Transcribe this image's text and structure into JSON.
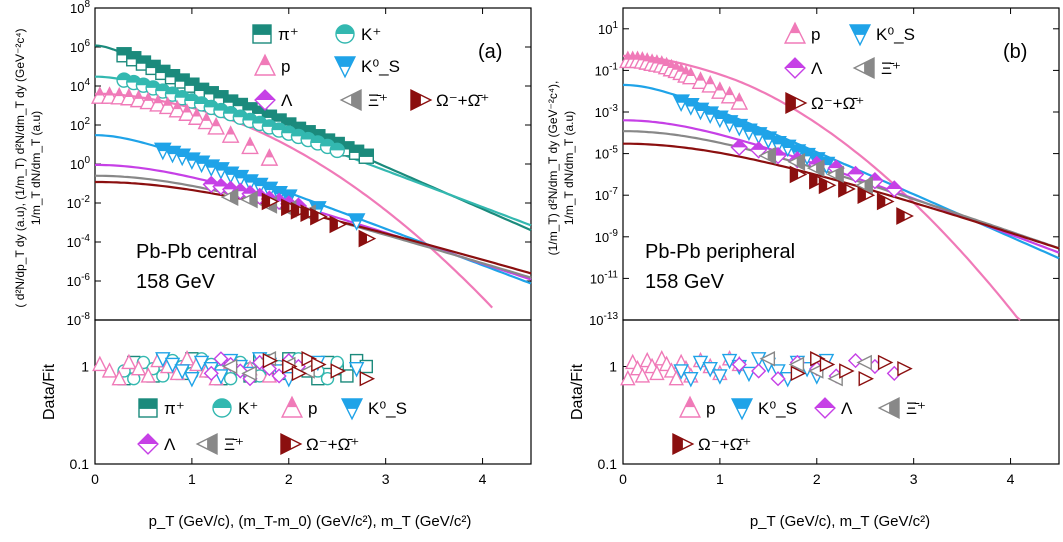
{
  "colors": {
    "pi": "#1b8a7c",
    "K": "#33b8b0",
    "p": "#f07ab8",
    "K0S": "#1fa3e8",
    "Lambda": "#c640e6",
    "Xi": "#888888",
    "Omega": "#8b0f0f",
    "axis": "#000000"
  },
  "panel_a": {
    "tag": "(a)",
    "system": "Pb-Pb central",
    "energy": "158 GeV",
    "ylabel_line1": "( d²N/dp_T dy (a.u), (1/m_T) d²N/dm_T dy (GeV⁻²c⁴)",
    "ylabel_line2": "1/m_T dN/dm_T (a.u)",
    "xlabel": "p_T (GeV/c), (m_T-m_0) (GeV/c²), m_T (GeV/c²)",
    "ratio_ylabel": "Data/Fit",
    "top_ticks": [
      "10^8",
      "10^6",
      "10^4",
      "10^2",
      "10^0",
      "10^-2",
      "10^-4",
      "10^-6",
      "10^-8"
    ],
    "ratio_ticks": [
      "1",
      "0.1"
    ],
    "x_ticks": [
      "0",
      "1",
      "2",
      "3",
      "4"
    ],
    "legend": [
      "π⁺",
      "K⁺",
      "p",
      "K⁰_S",
      "Λ",
      "Ξ̄⁺",
      "Ω⁻+Ω̄⁺"
    ]
  },
  "panel_b": {
    "tag": "(b)",
    "system": "Pb-Pb peripheral",
    "energy": "158 GeV",
    "ylabel_line1": "(1/m_T) d²N/dm_T dy (GeV⁻²c⁴),",
    "ylabel_line2": "1/m_T dN/dm_T (a.u)",
    "xlabel": "p_T (GeV/c), m_T (GeV/c²)",
    "ratio_ylabel": "Data/Fit",
    "top_ticks": [
      "10^1",
      "10^-1",
      "10^-3",
      "10^-5",
      "10^-7",
      "10^-9",
      "10^-11",
      "10^-13"
    ],
    "ratio_ticks": [
      "1",
      "0.1"
    ],
    "x_ticks": [
      "0",
      "1",
      "2",
      "3",
      "4"
    ],
    "legend": [
      "p",
      "K⁰_S",
      "Λ",
      "Ξ̄⁺",
      "Ω⁻+Ω̄⁺"
    ]
  },
  "chart_data": [
    {
      "type": "scatter",
      "panel": "a",
      "yscale": "log",
      "xlim": [
        0,
        4.5
      ],
      "ylim": [
        1e-08,
        100000000.0
      ],
      "series": [
        {
          "name": "π⁺",
          "fit": {
            "A": 1200000.0,
            "T": 0.2,
            "m": 0.14,
            "xmax": 4.5
          },
          "x": [
            0.3,
            0.4,
            0.5,
            0.6,
            0.7,
            0.8,
            0.9,
            1.0,
            1.1,
            1.2,
            1.3,
            1.4,
            1.5,
            1.6,
            1.7,
            1.8,
            1.9,
            2.0,
            2.1,
            2.2,
            2.3,
            2.4,
            2.5,
            2.6,
            2.7,
            2.8
          ],
          "y": [
            400000.0,
            250000.0,
            150000.0,
            90000.0,
            50000.0,
            30000.0,
            18000.0,
            11000.0,
            6000.0,
            4000.0,
            2500.0,
            1500.0,
            1000.0,
            600.0,
            400.0,
            250.0,
            160.0,
            100.0,
            60,
            40,
            25,
            15,
            10,
            6,
            4,
            2.5
          ]
        },
        {
          "name": "K⁺",
          "fit": {
            "A": 30000.0,
            "T": 0.23,
            "m": 0.49,
            "xmax": 4.5
          },
          "x": [
            0.3,
            0.4,
            0.5,
            0.6,
            0.7,
            0.8,
            0.9,
            1.0,
            1.1,
            1.2,
            1.3,
            1.4,
            1.5,
            1.6,
            1.7,
            1.8,
            1.9,
            2.0,
            2.1,
            2.2,
            2.3,
            2.4,
            2.5
          ],
          "y": [
            20000.0,
            15000.0,
            11000.0,
            8000.0,
            5500.0,
            3800.0,
            2500.0,
            1700.0,
            1200.0,
            800.0,
            550.0,
            380.0,
            250.0,
            170.0,
            120.0,
            80,
            55,
            38,
            26,
            18,
            12,
            8,
            5
          ]
        },
        {
          "name": "p",
          "fit": {
            "A": 4000.0,
            "T": 0.26,
            "m": 0.94,
            "xmax": 4.1,
            "steep": 2.2
          },
          "x": [
            0.05,
            0.15,
            0.25,
            0.35,
            0.45,
            0.55,
            0.65,
            0.75,
            0.85,
            0.95,
            1.05,
            1.15,
            1.25,
            1.4,
            1.6,
            1.8
          ],
          "y": [
            3000.0,
            3000.0,
            2800.0,
            2500.0,
            2000.0,
            1600.0,
            1200.0,
            900.0,
            600.0,
            400.0,
            250.0,
            150.0,
            80,
            30,
            8,
            2
          ]
        },
        {
          "name": "K⁰_S",
          "fit": {
            "A": 30,
            "T": 0.23,
            "m": 0.5,
            "xmax": 4.5
          },
          "x": [
            0.7,
            0.8,
            0.9,
            1.0,
            1.1,
            1.2,
            1.3,
            1.4,
            1.5,
            1.6,
            1.7,
            1.8,
            1.9,
            2.0,
            2.3,
            2.7
          ],
          "y": [
            5,
            3.5,
            2.5,
            1.6,
            1.1,
            0.7,
            0.5,
            0.3,
            0.2,
            0.12,
            0.08,
            0.05,
            0.03,
            0.02,
            0.005,
            0.0012
          ]
        },
        {
          "name": "Λ",
          "fit": {
            "A": 0.9,
            "T": 0.26,
            "m": 1.12,
            "xmax": 4.5
          },
          "x": [
            1.2,
            1.3,
            1.4,
            1.5,
            1.6,
            1.7,
            1.8,
            1.9,
            2.0,
            2.1
          ],
          "y": [
            0.09,
            0.07,
            0.05,
            0.04,
            0.03,
            0.022,
            0.016,
            0.012,
            0.009,
            0.007
          ]
        },
        {
          "name": "Ξ̄⁺",
          "fit": {
            "A": 0.25,
            "T": 0.28,
            "m": 1.32,
            "xmax": 4.5
          },
          "x": [
            1.4,
            1.6,
            1.8,
            2.0,
            2.2
          ],
          "y": [
            0.02,
            0.015,
            0.008,
            0.005,
            0.003
          ]
        },
        {
          "name": "Ω⁻+Ω̄⁺",
          "fit": {
            "A": 0.12,
            "T": 0.29,
            "m": 1.67,
            "xmax": 4.5
          },
          "x": [
            1.8,
            2.0,
            2.1,
            2.2,
            2.3,
            2.5,
            2.8
          ],
          "y": [
            0.012,
            0.006,
            0.004,
            0.003,
            0.002,
            0.0008,
            0.00015
          ]
        }
      ]
    },
    {
      "type": "scatter",
      "panel": "b",
      "yscale": "log",
      "xlim": [
        0,
        4.5
      ],
      "ylim": [
        1e-13,
        100.0
      ],
      "series": [
        {
          "name": "p",
          "fit": {
            "A": 0.5,
            "T": 0.21,
            "m": 0.94,
            "xmax": 4.1,
            "steep": 2.4
          },
          "x": [
            0.05,
            0.1,
            0.15,
            0.2,
            0.25,
            0.3,
            0.35,
            0.4,
            0.45,
            0.5,
            0.55,
            0.6,
            0.65,
            0.7,
            0.8,
            0.9,
            1.0,
            1.1,
            1.2
          ],
          "y": [
            0.3,
            0.3,
            0.3,
            0.28,
            0.25,
            0.22,
            0.2,
            0.18,
            0.15,
            0.12,
            0.1,
            0.08,
            0.06,
            0.05,
            0.03,
            0.02,
            0.01,
            0.006,
            0.003
          ]
        },
        {
          "name": "K⁰_S",
          "fit": {
            "A": 0.02,
            "T": 0.21,
            "m": 0.5,
            "xmax": 4.5
          },
          "x": [
            0.6,
            0.7,
            0.8,
            0.9,
            1.0,
            1.1,
            1.2,
            1.3,
            1.4,
            1.5,
            1.6,
            1.7,
            1.8,
            1.9,
            2.0,
            2.1
          ],
          "y": [
            0.003,
            0.002,
            0.0012,
            0.0008,
            0.0005,
            0.0003,
            0.0002,
            0.00012,
            8e-05,
            5e-05,
            3e-05,
            2e-05,
            1.2e-05,
            8e-06,
            5e-06,
            3e-06
          ]
        },
        {
          "name": "Λ",
          "fit": {
            "A": 0.0004,
            "T": 0.24,
            "m": 1.12,
            "xmax": 4.5
          },
          "x": [
            1.2,
            1.4,
            1.6,
            1.8,
            2.0,
            2.2,
            2.4,
            2.6,
            2.8
          ],
          "y": [
            2e-05,
            1.5e-05,
            8e-06,
            5e-06,
            3e-06,
            2e-06,
            1e-06,
            5e-07,
            2e-07
          ]
        },
        {
          "name": "Ξ̄⁺",
          "fit": {
            "A": 0.00012,
            "T": 0.26,
            "m": 1.32,
            "xmax": 4.5
          },
          "x": [
            1.5,
            1.8,
            2.0,
            2.2,
            2.5
          ],
          "y": [
            8e-06,
            4e-06,
            2e-06,
            1e-06,
            3e-07
          ]
        },
        {
          "name": "Ω⁻+Ω̄⁺",
          "fit": {
            "A": 3e-05,
            "T": 0.27,
            "m": 1.67,
            "xmax": 4.5
          },
          "x": [
            1.8,
            2.0,
            2.1,
            2.3,
            2.5,
            2.7,
            2.9
          ],
          "y": [
            1e-06,
            5e-07,
            3e-07,
            2e-07,
            1e-07,
            5e-08,
            1e-08
          ]
        }
      ]
    }
  ]
}
